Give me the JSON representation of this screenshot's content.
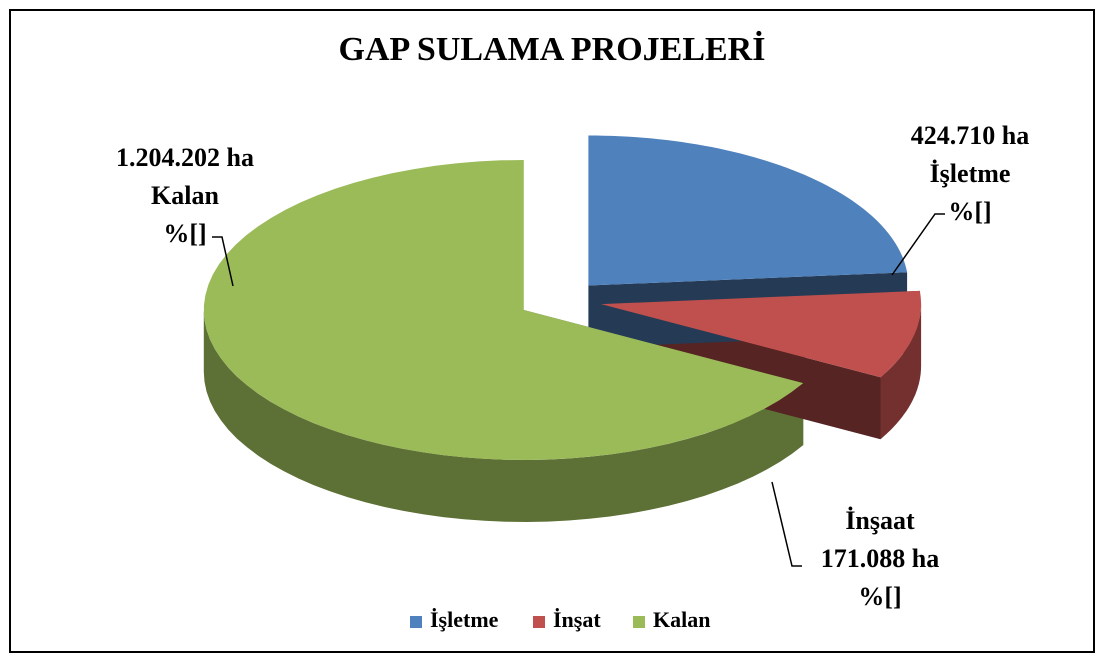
{
  "chart_data": {
    "type": "pie3d",
    "title": "GAP SULAMA PROJELERİ",
    "categories": [
      "İşletme",
      "İnşat",
      "Kalan"
    ],
    "values": [
      424710,
      171088,
      1204202
    ],
    "value_labels": [
      "424.710 ha",
      "171.088 ha",
      "1.204.202 ha"
    ],
    "label_names": [
      "İşletme",
      "İnşaat",
      "Kalan"
    ],
    "percent_labels": [
      "%[]",
      "%[]",
      "%[]"
    ],
    "colors": [
      "#4f81bd",
      "#c0504d",
      "#9bbb59"
    ],
    "legend": "bottom"
  }
}
